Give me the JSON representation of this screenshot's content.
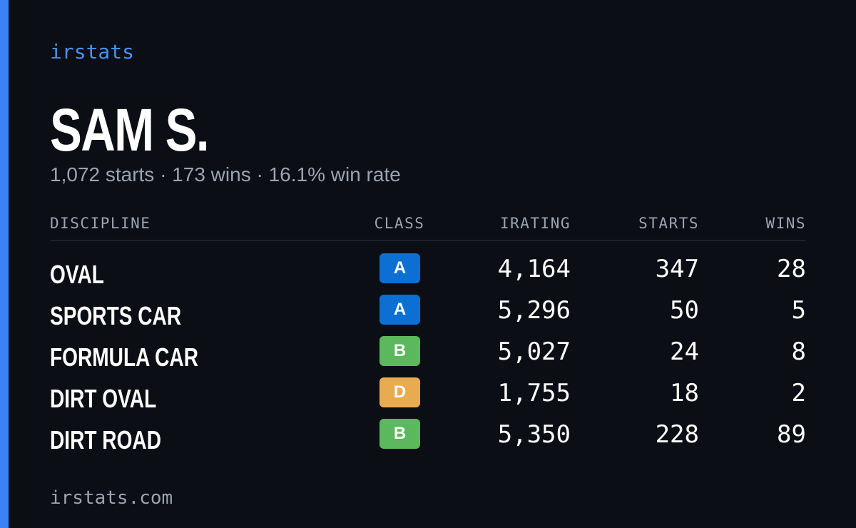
{
  "header": {
    "brand": "irstats",
    "name": "SAM S.",
    "summary": "1,072 starts · 173 wins · 16.1% win rate"
  },
  "table": {
    "columns": [
      "DISCIPLINE",
      "CLASS",
      "IRATING",
      "STARTS",
      "WINS"
    ],
    "rows": [
      {
        "discipline": "OVAL",
        "class": "A",
        "class_color": "#0b6fd4",
        "irating": "4,164",
        "starts": "347",
        "wins": "28"
      },
      {
        "discipline": "SPORTS CAR",
        "class": "A",
        "class_color": "#0b6fd4",
        "irating": "5,296",
        "starts": "50",
        "wins": "5"
      },
      {
        "discipline": "FORMULA CAR",
        "class": "B",
        "class_color": "#5cb85c",
        "irating": "5,027",
        "starts": "24",
        "wins": "8"
      },
      {
        "discipline": "DIRT OVAL",
        "class": "D",
        "class_color": "#e9ab4f",
        "irating": "1,755",
        "starts": "18",
        "wins": "2"
      },
      {
        "discipline": "DIRT ROAD",
        "class": "B",
        "class_color": "#5cb85c",
        "irating": "5,350",
        "starts": "228",
        "wins": "89"
      }
    ]
  },
  "footer": {
    "url": "irstats.com"
  }
}
